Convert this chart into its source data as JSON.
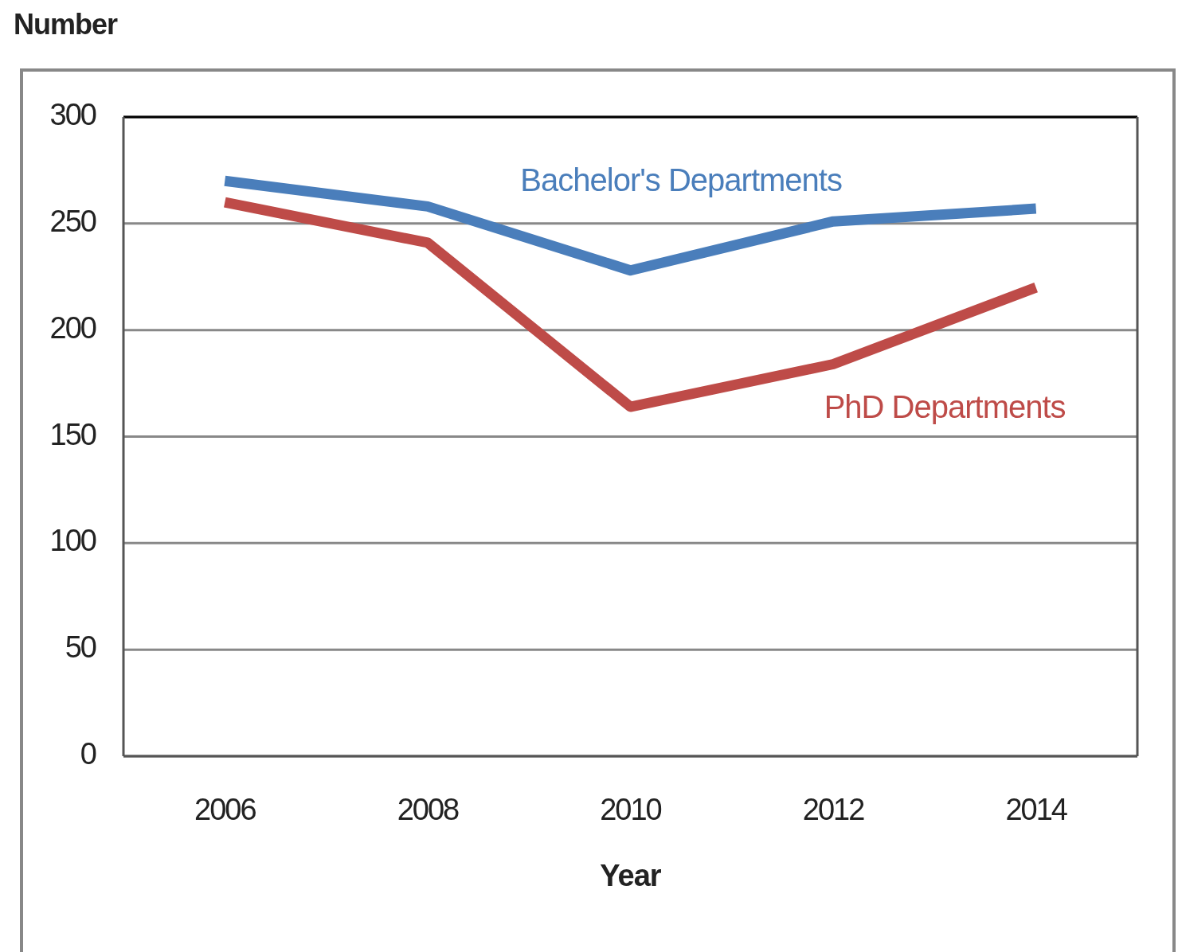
{
  "chart_data": {
    "type": "line",
    "xlabel": "Year",
    "ylabel": "Number",
    "categories": [
      "2006",
      "2008",
      "2010",
      "2012",
      "2014"
    ],
    "series": [
      {
        "name": "Bachelor's Departments",
        "color": "#4a7ebb",
        "values": [
          270,
          258,
          228,
          251,
          257
        ]
      },
      {
        "name": "PhD Departments",
        "color": "#be4b48",
        "values": [
          260,
          241,
          164,
          184,
          220
        ]
      }
    ],
    "ylim": [
      0,
      300
    ],
    "yticks": [
      0,
      50,
      100,
      150,
      200,
      250,
      300
    ],
    "grid": "y",
    "marker": "none",
    "line_style": "solid"
  }
}
